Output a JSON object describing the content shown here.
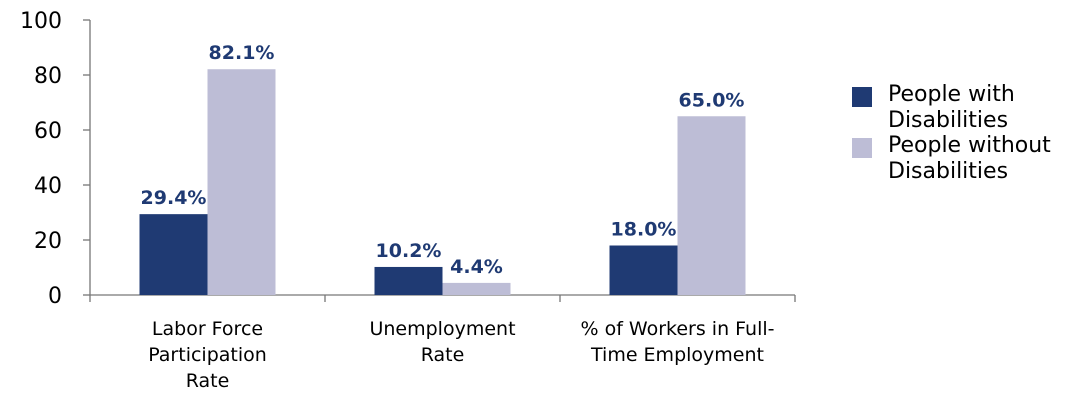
{
  "chart_data": {
    "type": "bar",
    "categories": [
      [
        "Labor Force",
        "Participation",
        "Rate"
      ],
      [
        "Unemployment",
        "Rate"
      ],
      [
        "% of Workers in Full-",
        "Time Employment"
      ]
    ],
    "series": [
      {
        "name": [
          "People with",
          "Disabilities"
        ],
        "values": [
          29.4,
          10.2,
          18.0
        ],
        "labels": [
          "29.4%",
          "10.2%",
          "18.0%"
        ],
        "color": "#1f3a73"
      },
      {
        "name": [
          "People without",
          "Disabilities"
        ],
        "values": [
          82.1,
          4.4,
          65.0
        ],
        "labels": [
          "82.1%",
          "4.4%",
          "65.0%"
        ],
        "color": "#bdbdd6"
      }
    ],
    "yticks": [
      "0",
      "20",
      "40",
      "60",
      "80",
      "100"
    ],
    "ylim": [
      0,
      100
    ],
    "grid": false,
    "legend": "right",
    "label_color": "#1f3a73"
  }
}
